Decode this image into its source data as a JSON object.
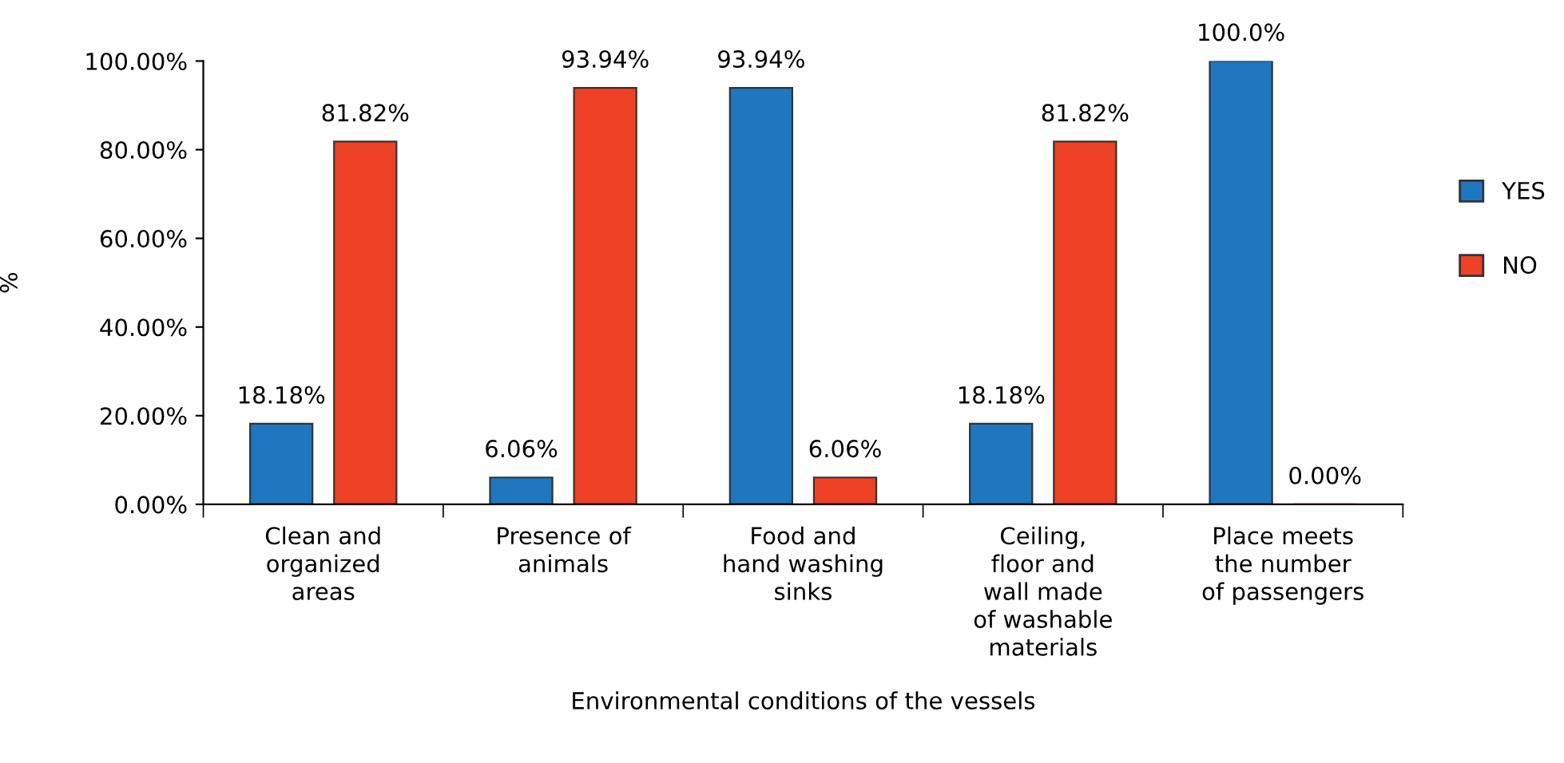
{
  "chart_data": {
    "type": "bar",
    "xlabel": "Environmental conditions of the vessels",
    "ylabel": "%",
    "categories": [
      "Clean and\norganized\nareas",
      "Presence of\nanimals",
      "Food and\nhand washing\nsinks",
      "Ceiling,\nfloor and\nwall made\nof washable\nmaterials",
      "Place meets\nthe number\nof passengers"
    ],
    "series": [
      {
        "name": "YES",
        "color": "#1f77c0",
        "values": [
          18.18,
          6.06,
          93.94,
          18.18,
          100.0
        ],
        "value_labels": [
          "18.18%",
          "6.06%",
          "93.94%",
          "18.18%",
          "100.0%"
        ]
      },
      {
        "name": "NO",
        "color": "#ee4125",
        "values": [
          81.82,
          93.94,
          6.06,
          81.82,
          0.0
        ],
        "value_labels": [
          "81.82%",
          "93.94%",
          "6.06%",
          "81.82%",
          "0.00%"
        ]
      }
    ],
    "ylim": [
      0,
      100
    ],
    "yticks": [
      {
        "value": 0,
        "label": "0.00%"
      },
      {
        "value": 20,
        "label": "20.00%"
      },
      {
        "value": 40,
        "label": "40.00%"
      },
      {
        "value": 60,
        "label": "60.00%"
      },
      {
        "value": 80,
        "label": "80.00%"
      },
      {
        "value": 100,
        "label": "100.00%"
      }
    ],
    "grid": false,
    "legend": "right"
  }
}
